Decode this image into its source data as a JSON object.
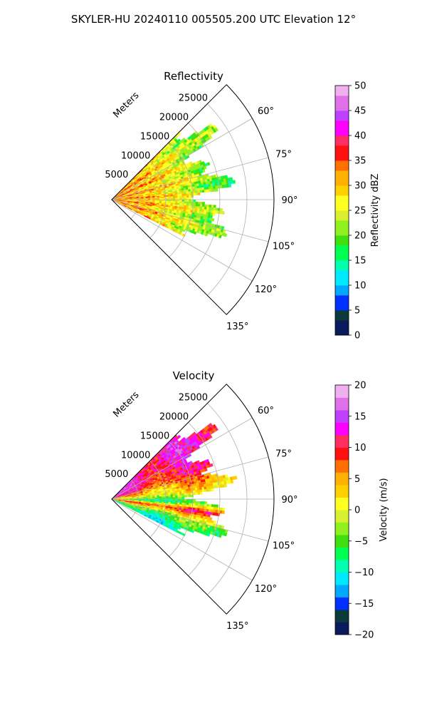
{
  "figure": {
    "suptitle": "SKYLER-HU  20240110  005505.200 UTC Elevation 12°"
  },
  "chart_data": [
    {
      "type": "heatmap",
      "projection": "polar-sector",
      "title": "Reflectivity",
      "radial_axis_label": "Meters",
      "radial_range_m": [
        0,
        30000
      ],
      "radial_ticks": [
        5000,
        10000,
        15000,
        20000,
        25000
      ],
      "radial_tick_labels": [
        "5000",
        "10000",
        "15000",
        "20000",
        "25000"
      ],
      "angle_range_deg": [
        45,
        135
      ],
      "angle_ticks": [
        60,
        75,
        90,
        105,
        120,
        135
      ],
      "angle_tick_labels": [
        "60°",
        "75°",
        "90°",
        "105°",
        "120°",
        "135°"
      ],
      "grid": true,
      "colorbar": {
        "label": "Reflectivity dBZ",
        "range": [
          0,
          50
        ],
        "ticks": [
          0,
          5,
          10,
          15,
          20,
          25,
          30,
          35,
          40,
          45,
          50
        ],
        "tick_labels": [
          "0",
          "5",
          "10",
          "15",
          "20",
          "25",
          "30",
          "35",
          "40",
          "45",
          "50"
        ],
        "colormap": [
          [
            0,
            "#0a1a5c"
          ],
          [
            3,
            "#0a3a3a"
          ],
          [
            5,
            "#0030ff"
          ],
          [
            8,
            "#00a8ff"
          ],
          [
            10,
            "#00e8ff"
          ],
          [
            13,
            "#00ffb0"
          ],
          [
            15,
            "#00ff50"
          ],
          [
            18,
            "#40e010"
          ],
          [
            20,
            "#90f020"
          ],
          [
            23,
            "#d8f030"
          ],
          [
            25,
            "#ffff20"
          ],
          [
            28,
            "#ffd000"
          ],
          [
            30,
            "#ffb000"
          ],
          [
            33,
            "#ff7000"
          ],
          [
            35,
            "#ff1010"
          ],
          [
            38,
            "#ff3060"
          ],
          [
            40,
            "#ff00ff"
          ],
          [
            43,
            "#c040ff"
          ],
          [
            45,
            "#e070e8"
          ],
          [
            48,
            "#f0b0f0"
          ],
          [
            50,
            "#ffe8ff"
          ]
        ]
      },
      "data_extent": {
        "angle_deg": [
          45,
          117
        ],
        "range_m": [
          0,
          23500
        ],
        "approx_mean_dbz_by_range_km": [
          [
            2,
            32
          ],
          [
            6,
            31
          ],
          [
            10,
            28
          ],
          [
            14,
            25
          ],
          [
            18,
            21
          ],
          [
            22,
            20
          ]
        ]
      }
    },
    {
      "type": "heatmap",
      "projection": "polar-sector",
      "title": "Velocity",
      "radial_axis_label": "Meters",
      "radial_range_m": [
        0,
        30000
      ],
      "radial_ticks": [
        5000,
        10000,
        15000,
        20000,
        25000
      ],
      "radial_tick_labels": [
        "5000",
        "10000",
        "15000",
        "20000",
        "25000"
      ],
      "angle_range_deg": [
        45,
        135
      ],
      "angle_ticks": [
        60,
        75,
        90,
        105,
        120,
        135
      ],
      "angle_tick_labels": [
        "60°",
        "75°",
        "90°",
        "105°",
        "120°",
        "135°"
      ],
      "grid": true,
      "colorbar": {
        "label": "Velocity (m/s)",
        "range": [
          -20,
          20
        ],
        "ticks": [
          -20,
          -15,
          -10,
          -5,
          0,
          5,
          10,
          15,
          20
        ],
        "tick_labels": [
          "−20",
          "−15",
          "−10",
          "−5",
          "0",
          "5",
          "10",
          "15",
          "20"
        ],
        "colormap": [
          [
            -20,
            "#0a1a5c"
          ],
          [
            -18,
            "#0a3a3a"
          ],
          [
            -16,
            "#0030ff"
          ],
          [
            -14,
            "#00a8ff"
          ],
          [
            -12,
            "#00e8ff"
          ],
          [
            -10,
            "#00ffb0"
          ],
          [
            -8,
            "#00ff50"
          ],
          [
            -6,
            "#40e010"
          ],
          [
            -4,
            "#90f020"
          ],
          [
            -2,
            "#d8f030"
          ],
          [
            0,
            "#ffff20"
          ],
          [
            2,
            "#ffd000"
          ],
          [
            4,
            "#ffb000"
          ],
          [
            6,
            "#ff7000"
          ],
          [
            8,
            "#ff1010"
          ],
          [
            10,
            "#ff3060"
          ],
          [
            12,
            "#ff00ff"
          ],
          [
            14,
            "#c040ff"
          ],
          [
            16,
            "#e070e8"
          ],
          [
            18,
            "#f0b0f0"
          ],
          [
            20,
            "#ffe8ff"
          ]
        ]
      },
      "data_extent": {
        "angle_deg": [
          45,
          117
        ],
        "range_m": [
          0,
          23500
        ],
        "approx_velocity_by_angle_deg": [
          [
            55,
            12
          ],
          [
            70,
            10
          ],
          [
            85,
            1
          ],
          [
            92,
            -8
          ],
          [
            98,
            10
          ],
          [
            105,
            -3
          ],
          [
            113,
            -9
          ]
        ]
      }
    }
  ]
}
